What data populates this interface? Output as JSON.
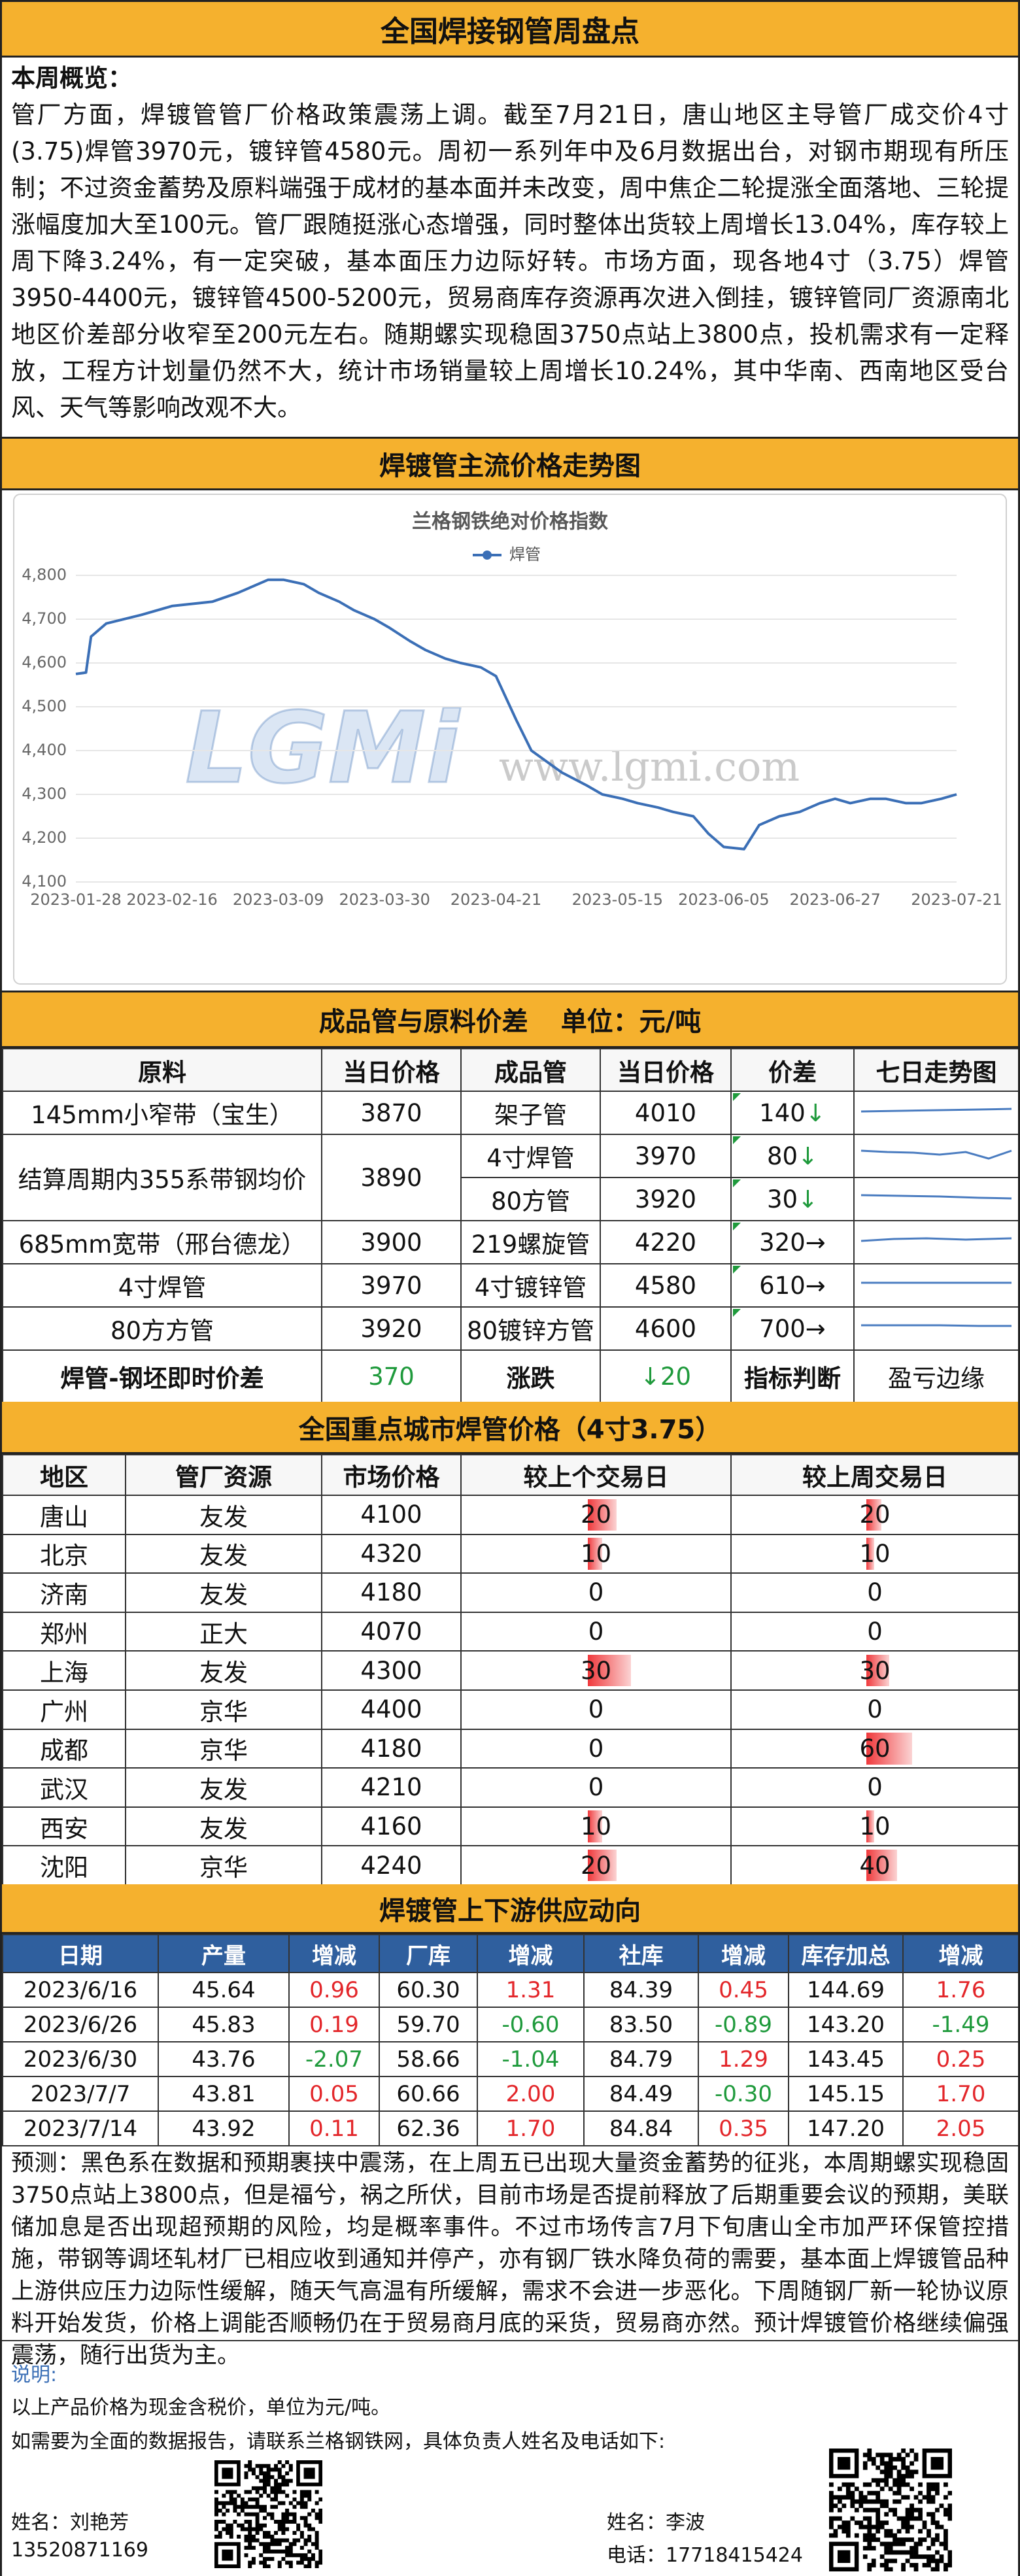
{
  "header": {
    "title": "全国焊接钢管周盘点"
  },
  "overview": {
    "label": "本周概览：",
    "text": "管厂方面，焊镀管管厂价格政策震荡上调。截至7月21日，唐山地区主导管厂成交价4寸(3.75)焊管3970元，镀锌管4580元。周初一系列年中及6月数据出台，对钢市期现有所压制；不过资金蓄势及原料端强于成材的基本面并未改变，周中焦企二轮提涨全面落地、三轮提涨幅度加大至100元。管厂跟随挺涨心态增强，同时整体出货较上周增长13.04%，库存较上周下降3.24%，有一定突破，基本面压力边际好转。市场方面，现各地4寸（3.75）焊管3950-4400元，镀锌管4500-5200元，贸易商库存资源再次进入倒挂，镀锌管同厂资源南北地区价差部分收窄至200元左右。随期螺实现稳固3750点站上3800点，投机需求有一定释放，工程方计划量仍然不大，统计市场销量较上周增长10.24%，其中华南、西南地区受台风、天气等影响改观不大。"
  },
  "trend_section": {
    "title": "焊镀管主流价格走势图"
  },
  "chart_data": {
    "type": "line",
    "title": "兰格钢铁绝对价格指数",
    "watermark": {
      "logo": "LGMi",
      "url": "www.lgmi.com"
    },
    "x": [
      "2023-01-28",
      "2023-01-30",
      "2023-01-31",
      "2023-02-03",
      "2023-02-10",
      "2023-02-16",
      "2023-02-24",
      "2023-03-01",
      "2023-03-07",
      "2023-03-10",
      "2023-03-14",
      "2023-03-17",
      "2023-03-21",
      "2023-03-24",
      "2023-03-28",
      "2023-03-31",
      "2023-04-04",
      "2023-04-07",
      "2023-04-11",
      "2023-04-14",
      "2023-04-18",
      "2023-04-21",
      "2023-04-25",
      "2023-04-28",
      "2023-05-04",
      "2023-05-09",
      "2023-05-12",
      "2023-05-16",
      "2023-05-19",
      "2023-05-23",
      "2023-05-26",
      "2023-05-30",
      "2023-06-02",
      "2023-06-05",
      "2023-06-09",
      "2023-06-12",
      "2023-06-16",
      "2023-06-20",
      "2023-06-24",
      "2023-06-27",
      "2023-06-30",
      "2023-07-04",
      "2023-07-07",
      "2023-07-11",
      "2023-07-14",
      "2023-07-18",
      "2023-07-21"
    ],
    "series": [
      {
        "name": "焊管",
        "color": "#3b6fb6",
        "values": [
          4575,
          4578,
          4660,
          4690,
          4710,
          4730,
          4740,
          4760,
          4790,
          4790,
          4780,
          4760,
          4740,
          4720,
          4700,
          4680,
          4650,
          4630,
          4610,
          4600,
          4590,
          4570,
          4470,
          4400,
          4350,
          4320,
          4300,
          4290,
          4280,
          4270,
          4260,
          4250,
          4210,
          4180,
          4175,
          4230,
          4250,
          4260,
          4280,
          4290,
          4280,
          4290,
          4290,
          4280,
          4280,
          4290,
          4300
        ]
      }
    ],
    "xlim": [
      "2023-01-28",
      "2023-07-21"
    ],
    "xticks": [
      "2023-01-28",
      "2023-02-16",
      "2023-03-09",
      "2023-03-30",
      "2023-04-21",
      "2023-05-15",
      "2023-06-05",
      "2023-06-27",
      "2023-07-21"
    ],
    "ylim": [
      4100,
      4800
    ],
    "yticks": [
      {
        "value": 4100,
        "label": "4,100"
      },
      {
        "value": 4200,
        "label": "4,200"
      },
      {
        "value": 4300,
        "label": "4,300"
      },
      {
        "value": 4400,
        "label": "4,400"
      },
      {
        "value": 4500,
        "label": "4,500"
      },
      {
        "value": 4600,
        "label": "4,600"
      },
      {
        "value": 4700,
        "label": "4,700"
      },
      {
        "value": 4800,
        "label": "4,800"
      }
    ],
    "grid": true,
    "legend": "top"
  },
  "spread_table": {
    "title": "成品管与原料价差",
    "unit": "单位：元/吨",
    "columns": [
      "原料",
      "当日价格",
      "成品管",
      "当日价格",
      "价差",
      "七日走势图"
    ],
    "rows": [
      {
        "material": "145mm小窄带（宝生）",
        "material_price": "3870",
        "product": "架子管",
        "product_price": "4010",
        "spread": "140",
        "trend": "↓"
      },
      {
        "material": "结算周期内355系带钢均价",
        "material_price": "3890",
        "product": "4寸焊管",
        "product_price": "3970",
        "spread": "80",
        "trend": "↓"
      },
      {
        "product": "80方管",
        "product_price": "3920",
        "spread": "30",
        "trend": "↓"
      },
      {
        "material": "685mm宽带（邢台德龙）",
        "material_price": "3900",
        "product": "219螺旋管",
        "product_price": "4220",
        "spread": "320",
        "trend": "→"
      },
      {
        "material": "4寸焊管",
        "material_price": "3970",
        "product": "4寸镀锌管",
        "product_price": "4580",
        "spread": "610",
        "trend": "→"
      },
      {
        "material": "80方方管",
        "material_price": "3920",
        "product": "80镀锌方管",
        "product_price": "4600",
        "spread": "700",
        "trend": "→"
      }
    ],
    "summary": {
      "label": "焊管-钢坯即时价差",
      "value": "370",
      "change_label": "涨跌",
      "change": "↓20",
      "indicator_label": "指标判断",
      "indicator": "盈亏边缘"
    }
  },
  "city_table": {
    "title": "全国重点城市焊管价格（4寸3.75）",
    "columns": [
      "地区",
      "管厂资源",
      "市场价格",
      "较上个交易日",
      "较上周交易日"
    ],
    "rows": [
      {
        "city": "唐山",
        "mill": "友发",
        "price": "4100",
        "vs_prev_day": 20,
        "vs_prev_week": 20
      },
      {
        "city": "北京",
        "mill": "友发",
        "price": "4320",
        "vs_prev_day": 10,
        "vs_prev_week": 10
      },
      {
        "city": "济南",
        "mill": "友发",
        "price": "4180",
        "vs_prev_day": 0,
        "vs_prev_week": 0
      },
      {
        "city": "郑州",
        "mill": "正大",
        "price": "4070",
        "vs_prev_day": 0,
        "vs_prev_week": 0
      },
      {
        "city": "上海",
        "mill": "友发",
        "price": "4300",
        "vs_prev_day": 30,
        "vs_prev_week": 30
      },
      {
        "city": "广州",
        "mill": "京华",
        "price": "4400",
        "vs_prev_day": 0,
        "vs_prev_week": 0
      },
      {
        "city": "成都",
        "mill": "京华",
        "price": "4180",
        "vs_prev_day": 0,
        "vs_prev_week": 60
      },
      {
        "city": "武汉",
        "mill": "友发",
        "price": "4210",
        "vs_prev_day": 0,
        "vs_prev_week": 0
      },
      {
        "city": "西安",
        "mill": "友发",
        "price": "4160",
        "vs_prev_day": 10,
        "vs_prev_week": 10
      },
      {
        "city": "沈阳",
        "mill": "京华",
        "price": "4240",
        "vs_prev_day": 20,
        "vs_prev_week": 40
      }
    ]
  },
  "supply_table": {
    "title": "焊镀管上下游供应动向",
    "columns": [
      "日期",
      "产量",
      "增减",
      "厂库",
      "增减",
      "社库",
      "增减",
      "库存加总",
      "增减"
    ],
    "rows": [
      [
        "2023/6/16",
        "45.64",
        "0.96",
        "60.30",
        "1.31",
        "84.39",
        "0.45",
        "144.69",
        "1.76"
      ],
      [
        "2023/6/26",
        "45.83",
        "0.19",
        "59.70",
        "-0.60",
        "83.50",
        "-0.89",
        "143.20",
        "-1.49"
      ],
      [
        "2023/6/30",
        "43.76",
        "-2.07",
        "58.66",
        "-1.04",
        "84.79",
        "1.29",
        "143.45",
        "0.25"
      ],
      [
        "2023/7/7",
        "43.81",
        "0.05",
        "60.66",
        "2.00",
        "84.49",
        "-0.30",
        "145.15",
        "1.70"
      ],
      [
        "2023/7/14",
        "43.92",
        "0.11",
        "62.36",
        "1.70",
        "84.84",
        "0.35",
        "147.20",
        "2.05"
      ]
    ]
  },
  "forecast": {
    "text": "预测：黑色系在数据和预期裹挟中震荡，在上周五已出现大量资金蓄势的征兆，本周期螺实现稳固3750点站上3800点，但是福兮，祸之所伏，目前市场是否提前释放了后期重要会议的预期，美联储加息是否出现超预期的风险，均是概率事件。不过市场传言7月下旬唐山全市加严环保管控措施，带钢等调坯轧材厂已相应收到通知并停产，亦有钢厂铁水降负荷的需要，基本面上焊镀管品种上游供应压力边际性缓解，随天气高温有所缓解，需求不会进一步恶化。下周随钢厂新一轮协议原料开始发货，价格上调能否顺畅仍在于贸易商月底的采货，贸易商亦然。预计焊镀管价格继续偏强震荡，随行出货为主。"
  },
  "footer": {
    "note_label": "说明:",
    "note": "以上产品价格为现金含税价，单位为元/吨。",
    "contact_intro": "如需要为全面的数据报告，请联系兰格钢铁网，具体负责人姓名及电话如下:",
    "contacts": [
      {
        "name": "姓名：刘艳芳",
        "phone": "13520871169"
      },
      {
        "name": "姓名：李波",
        "phone": "电话：17718415424"
      }
    ]
  }
}
